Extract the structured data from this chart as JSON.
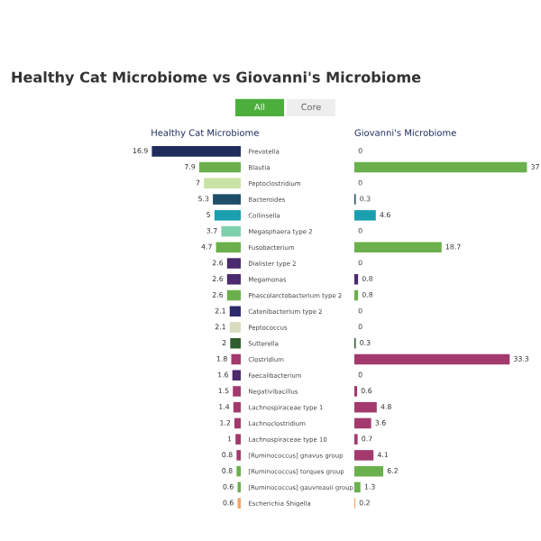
{
  "chart_data": [
    {
      "type": "bar",
      "orientation": "horizontal",
      "title": "Healthy Cat Microbiome vs Giovanni's Microbiome",
      "subtitle": "Healthy Cat Microbiome",
      "annotations": [
        "All",
        "Core"
      ],
      "data_labels": true,
      "tick_labels": "y",
      "xlim": [
        18,
        0
      ],
      "categories": [
        "Prevotella",
        "Blautia",
        "Peptoclostridium",
        "Bacteroides",
        "Collinsella",
        "Megasphaera type 2",
        "Fusobacterium",
        "Dialister type 2",
        "Megamonas",
        "Phascolarctobacterium type 2",
        "Catenibacterium type 2",
        "Peptococcus",
        "Sutterella",
        "Clostridium",
        "Faecalibacterium",
        "Negativibacillus",
        "Lachnospiraceae type 1",
        "Lachnoclostridium",
        "Lachnospiraceae type 10",
        "[Ruminococcus] gnavus group",
        "[Ruminococcus] torques group",
        "[Ruminococcus] gauvreauii group",
        "Escherichia Shigella"
      ],
      "values": [
        16.9,
        7.9,
        7,
        5.3,
        5,
        3.7,
        4.7,
        2.6,
        2.6,
        2.6,
        2.1,
        2.1,
        2,
        1.8,
        1.6,
        1.5,
        1.4,
        1.2,
        1,
        0.8,
        0.8,
        0.6,
        0.6
      ],
      "colors": [
        "#1f2d5c",
        "#6ab04c",
        "#c8e3a6",
        "#1f4e6b",
        "#1a9fb0",
        "#7fd1ae",
        "#6ab04c",
        "#4b2a6e",
        "#4b2a6e",
        "#6ab04c",
        "#2e2a6e",
        "#d9dcc0",
        "#2e5e2e",
        "#a23a6e",
        "#4b2a6e",
        "#a23a6e",
        "#a23a6e",
        "#a23a6e",
        "#a23a6e",
        "#a23a6e",
        "#6ab04c",
        "#6ab04c",
        "#f4a460"
      ]
    },
    {
      "type": "bar",
      "orientation": "horizontal",
      "title": "Giovanni's Microbiome",
      "data_labels": true,
      "tick_labels": false,
      "categories": [
        null,
        null,
        null,
        null,
        null,
        null,
        null,
        null,
        null,
        null,
        null,
        null,
        null,
        null,
        null,
        null,
        null,
        null,
        null,
        null,
        null,
        null,
        null
      ],
      "values": [
        0,
        37,
        0,
        0.3,
        4.6,
        0,
        18.7,
        0,
        0.8,
        0.8,
        0,
        0,
        0.3,
        33.3,
        0,
        0.6,
        4.8,
        3.6,
        0.7,
        4.1,
        6.2,
        1.3,
        0.2
      ],
      "colors": [
        "#1f2d5c",
        "#6ab04c",
        "#c8e3a6",
        "#1f4e6b",
        "#1a9fb0",
        "#7fd1ae",
        "#6ab04c",
        "#4b2a6e",
        "#4b2a6e",
        "#6ab04c",
        "#2e2a6e",
        "#d9dcc0",
        "#2e5e2e",
        "#a23a6e",
        "#4b2a6e",
        "#a23a6e",
        "#a23a6e",
        "#a23a6e",
        "#a23a6e",
        "#a23a6e",
        "#6ab04c",
        "#6ab04c",
        "#f4a460"
      ]
    }
  ]
}
